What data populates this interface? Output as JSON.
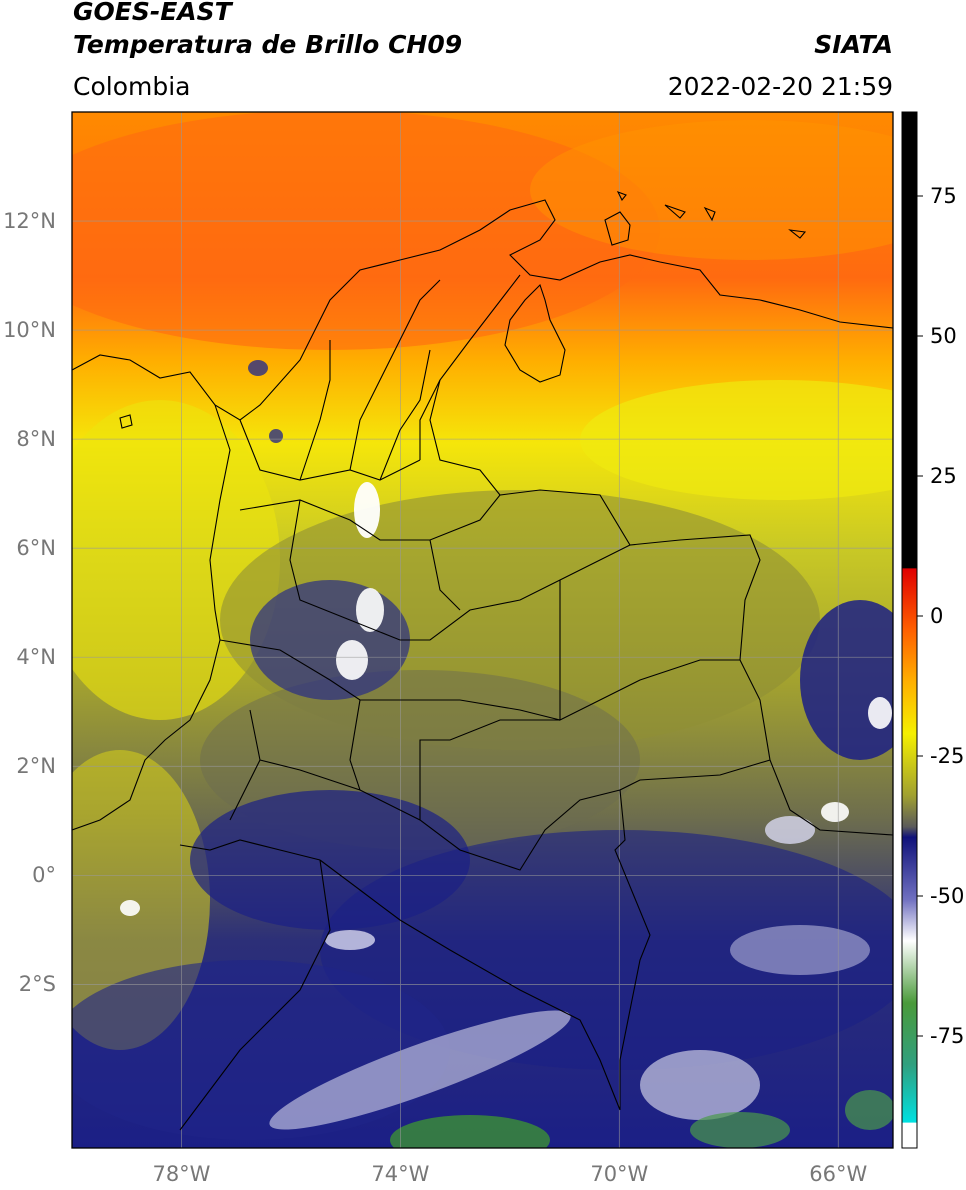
{
  "header": {
    "title_line1": "GOES-EAST",
    "title_line2": "Temperatura de Brillo CH09",
    "region": "Colombia",
    "source": "SIATA",
    "datetime": "2022-02-20 21:59"
  },
  "map": {
    "lon_range": [
      -80,
      -65
    ],
    "lat_range": [
      -5,
      14
    ],
    "lat_ticks": [
      {
        "value": 12,
        "label": "12°N"
      },
      {
        "value": 10,
        "label": "10°N"
      },
      {
        "value": 8,
        "label": "8°N"
      },
      {
        "value": 6,
        "label": "6°N"
      },
      {
        "value": 4,
        "label": "4°N"
      },
      {
        "value": 2,
        "label": "2°N"
      },
      {
        "value": 0,
        "label": "0°"
      },
      {
        "value": -2,
        "label": "2°S"
      }
    ],
    "lon_ticks": [
      {
        "value": -78,
        "label": "78°W"
      },
      {
        "value": -74,
        "label": "74°W"
      },
      {
        "value": -70,
        "label": "70°W"
      },
      {
        "value": -66,
        "label": "66°W"
      }
    ],
    "colors": {
      "orange": "#ff7d00",
      "yellow": "#f0ec10",
      "olive": "#9a9a30",
      "navy": "#1a1f80",
      "white": "#ffffff",
      "green": "#3a8a3a"
    }
  },
  "colorbar": {
    "range": [
      -95,
      90
    ],
    "ticks": [
      {
        "value": 75,
        "label": "75"
      },
      {
        "value": 50,
        "label": "50"
      },
      {
        "value": 25,
        "label": "25"
      },
      {
        "value": 0,
        "label": "0"
      },
      {
        "value": -25,
        "label": "-25"
      },
      {
        "value": -50,
        "label": "-50"
      },
      {
        "value": -75,
        "label": "-75"
      }
    ]
  }
}
